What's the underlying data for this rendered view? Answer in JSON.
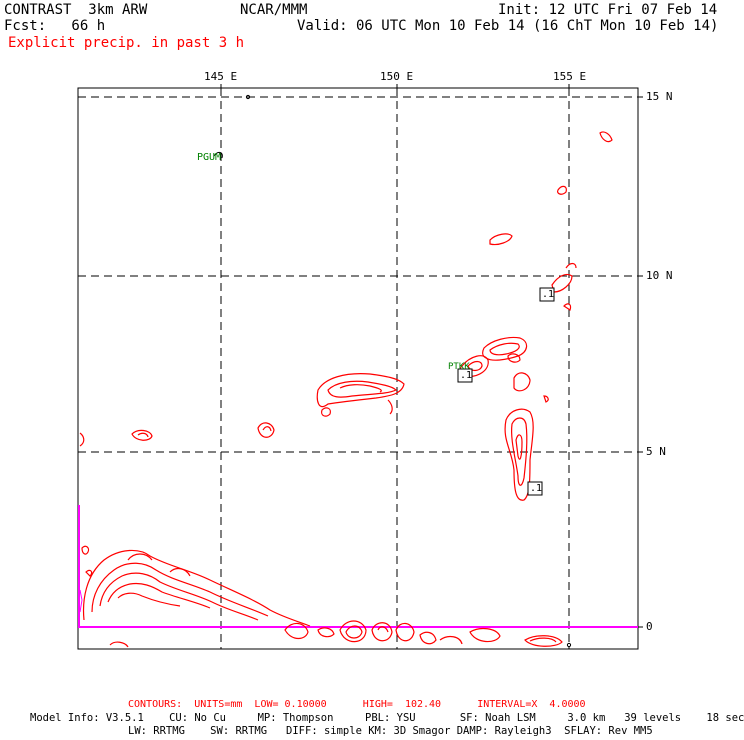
{
  "header": {
    "model_title": "CONTRAST  3km ARW",
    "center": "NCAR/MMM",
    "init": "Init: 12 UTC Fri 07 Feb 14",
    "fcst": "Fcst:   66 h",
    "valid": "Valid: 06 UTC Mon 10 Feb 14 (16 ChT Mon 10 Feb 14)",
    "field": "Explicit precip. in past 3 h"
  },
  "map": {
    "lon_labels": [
      "145 E",
      "150 E",
      "155 E"
    ],
    "lat_labels": [
      "15 N",
      "10 N",
      "5 N",
      "0"
    ],
    "stations": [
      "PGUM",
      "PTKK"
    ],
    "contour_label": ".1",
    "colors": {
      "contour": "#ff0000",
      "station": "#008000",
      "equator_line": "#ff00ff",
      "grid": "#000000"
    }
  },
  "footer": {
    "contours": "CONTOURS:  UNITS=mm  LOW= 0.10000      HIGH=  102.40      INTERVAL=X  4.0000",
    "model_info_1": "Model Info: V3.5.1    CU: No Cu     MP: Thompson     PBL: YSU       SF: Noah LSM     3.0 km   39 levels    18 sec",
    "model_info_2": "LW: RRTMG    SW: RRTMG   DIFF: simple KM: 3D Smagor DAMP: Rayleigh3  SFLAY: Rev MM5"
  }
}
